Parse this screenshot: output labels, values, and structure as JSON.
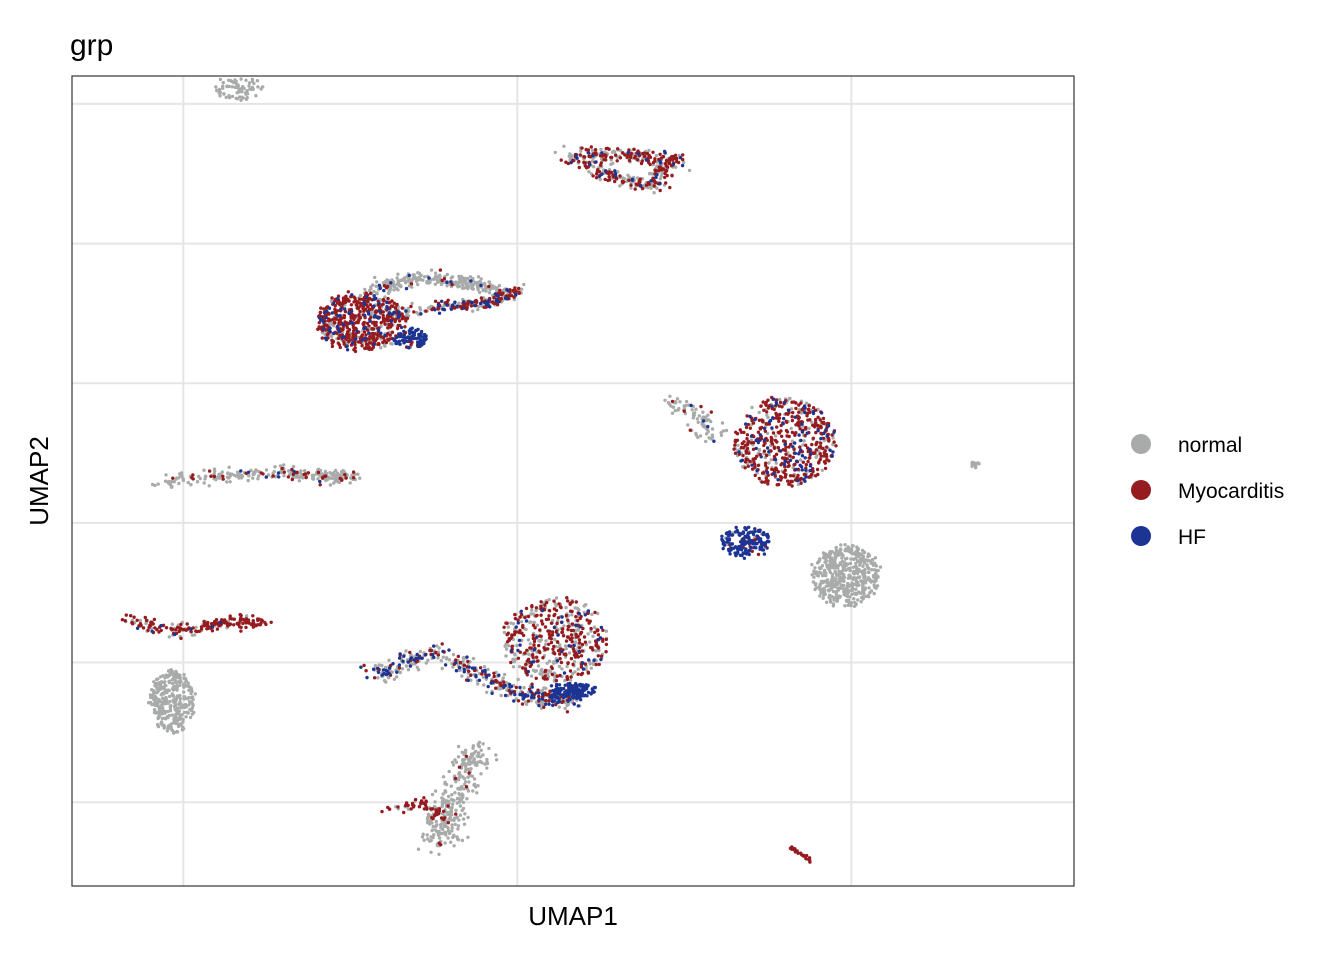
{
  "chart_data": {
    "type": "scatter",
    "title": "grp",
    "xlabel": "UMAP1",
    "ylabel": "UMAP2",
    "xlim": [
      -4,
      14
    ],
    "ylim": [
      -13,
      16
    ],
    "x_ticks": [
      -2,
      4,
      10
    ],
    "y_ticks": [
      -10,
      -5,
      0,
      5,
      10,
      15
    ],
    "tick_labels_shown": false,
    "grid": true,
    "legend_position": "right",
    "legend": [
      {
        "name": "normal",
        "color": "#A9ABAB"
      },
      {
        "name": "Myocarditis",
        "color": "#961B1E"
      },
      {
        "name": "HF",
        "color": "#1C3494"
      }
    ],
    "clusters": [
      {
        "id": "c1",
        "shape": "ellipse",
        "cx": -1.0,
        "cy": 15.6,
        "rx": 0.45,
        "ry": 0.45,
        "n": 80,
        "mix": [
          1,
          0,
          0
        ]
      },
      {
        "id": "c2",
        "shape": "polyline",
        "path": [
          [
            4.9,
            13.2
          ],
          [
            5.6,
            12.5
          ],
          [
            6.4,
            12.1
          ],
          [
            6.8,
            13.0
          ],
          [
            6.0,
            13.2
          ],
          [
            5.2,
            13.2
          ]
        ],
        "spread": 0.22,
        "n": 420,
        "mix": [
          0.5,
          0.42,
          0.08
        ]
      },
      {
        "id": "c3",
        "shape": "ellipse",
        "cx": 1.2,
        "cy": 7.2,
        "rx": 0.8,
        "ry": 1.05,
        "n": 620,
        "mix": [
          0.22,
          0.65,
          0.13
        ]
      },
      {
        "id": "c3-hf",
        "shape": "ellipse",
        "cx": 2.1,
        "cy": 6.6,
        "rx": 0.3,
        "ry": 0.35,
        "n": 90,
        "mix": [
          0.1,
          0.2,
          0.7
        ]
      },
      {
        "id": "c3-arm",
        "shape": "polyline",
        "path": [
          [
            1.6,
            7.4
          ],
          [
            2.8,
            7.8
          ],
          [
            3.5,
            7.9
          ],
          [
            4.0,
            8.3
          ]
        ],
        "spread": 0.18,
        "n": 240,
        "mix": [
          0.4,
          0.45,
          0.15
        ]
      },
      {
        "id": "c3-top",
        "shape": "polyline",
        "path": [
          [
            1.4,
            8.3
          ],
          [
            2.2,
            8.8
          ],
          [
            3.0,
            8.6
          ],
          [
            3.6,
            8.4
          ]
        ],
        "spread": 0.2,
        "n": 260,
        "mix": [
          0.9,
          0.05,
          0.05
        ]
      },
      {
        "id": "c4",
        "shape": "polyline",
        "path": [
          [
            -2.5,
            1.5
          ],
          [
            -1.3,
            1.7
          ],
          [
            -0.2,
            1.8
          ],
          [
            0.5,
            1.7
          ],
          [
            1.1,
            1.6
          ]
        ],
        "spread": 0.2,
        "n": 260,
        "mix": [
          0.82,
          0.16,
          0.02
        ]
      },
      {
        "id": "c5",
        "shape": "polyline",
        "path": [
          [
            -3.0,
            -3.5
          ],
          [
            -2.0,
            -3.9
          ],
          [
            -1.2,
            -3.5
          ],
          [
            -0.6,
            -3.6
          ]
        ],
        "spread": 0.2,
        "n": 200,
        "mix": [
          0.25,
          0.7,
          0.05
        ]
      },
      {
        "id": "c5-stem",
        "shape": "ellipse",
        "cx": -2.2,
        "cy": -6.4,
        "rx": 0.4,
        "ry": 1.1,
        "n": 320,
        "mix": [
          1,
          0,
          0
        ]
      },
      {
        "id": "c6",
        "shape": "ellipse",
        "cx": 4.7,
        "cy": -4.2,
        "rx": 0.95,
        "ry": 1.5,
        "n": 520,
        "mix": [
          0.45,
          0.5,
          0.05
        ]
      },
      {
        "id": "c6-arm",
        "shape": "polyline",
        "path": [
          [
            1.4,
            -5.5
          ],
          [
            2.5,
            -4.6
          ],
          [
            3.6,
            -5.7
          ],
          [
            4.4,
            -6.3
          ],
          [
            5.0,
            -6.3
          ]
        ],
        "spread": 0.25,
        "n": 460,
        "mix": [
          0.55,
          0.2,
          0.25
        ]
      },
      {
        "id": "c6-hf",
        "shape": "ellipse",
        "cx": 5.0,
        "cy": -6.0,
        "rx": 0.4,
        "ry": 0.25,
        "n": 120,
        "mix": [
          0,
          0,
          1
        ]
      },
      {
        "id": "c7",
        "shape": "polyline",
        "path": [
          [
            1.6,
            -10.3
          ],
          [
            2.3,
            -10.0
          ],
          [
            2.7,
            -10.6
          ]
        ],
        "spread": 0.15,
        "n": 60,
        "mix": [
          0.2,
          0.8,
          0
        ]
      },
      {
        "id": "c7-stem",
        "shape": "polyline",
        "path": [
          [
            3.3,
            -8.0
          ],
          [
            2.8,
            -10.0
          ],
          [
            2.6,
            -11.5
          ]
        ],
        "spread": 0.3,
        "n": 300,
        "mix": [
          0.97,
          0.03,
          0
        ]
      },
      {
        "id": "c8",
        "shape": "ellipse",
        "cx": 8.8,
        "cy": 2.9,
        "rx": 0.9,
        "ry": 1.6,
        "n": 600,
        "mix": [
          0.28,
          0.6,
          0.12
        ]
      },
      {
        "id": "c8-left",
        "shape": "polyline",
        "path": [
          [
            6.8,
            4.4
          ],
          [
            7.3,
            3.8
          ],
          [
            7.5,
            3.0
          ]
        ],
        "spread": 0.25,
        "n": 80,
        "mix": [
          0.85,
          0.1,
          0.05
        ]
      },
      {
        "id": "c8-hf",
        "shape": "ellipse",
        "cx": 8.1,
        "cy": -0.7,
        "rx": 0.45,
        "ry": 0.55,
        "n": 170,
        "mix": [
          0.05,
          0.1,
          0.85
        ]
      },
      {
        "id": "c9",
        "shape": "ellipse",
        "cx": 9.9,
        "cy": -1.9,
        "rx": 0.6,
        "ry": 1.1,
        "n": 480,
        "mix": [
          1,
          0,
          0
        ]
      },
      {
        "id": "c10",
        "shape": "polyline",
        "path": [
          [
            8.9,
            -11.6
          ],
          [
            9.3,
            -12.1
          ]
        ],
        "spread": 0.04,
        "n": 24,
        "mix": [
          0,
          1,
          0
        ]
      },
      {
        "id": "c11",
        "shape": "ellipse",
        "cx": 12.2,
        "cy": 2.1,
        "rx": 0.08,
        "ry": 0.08,
        "n": 10,
        "mix": [
          1,
          0,
          0
        ]
      }
    ]
  }
}
